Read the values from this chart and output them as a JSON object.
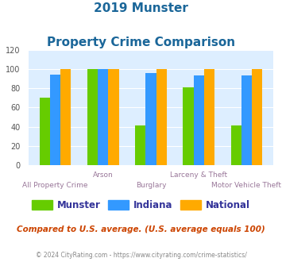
{
  "title_line1": "2019 Munster",
  "title_line2": "Property Crime Comparison",
  "categories": [
    "All Property Crime",
    "Arson",
    "Burglary",
    "Larceny & Theft",
    "Motor Vehicle Theft"
  ],
  "munster": [
    70,
    100,
    41,
    81,
    41
  ],
  "indiana": [
    94,
    100,
    96,
    93,
    93
  ],
  "national": [
    100,
    100,
    100,
    100,
    100
  ],
  "color_munster": "#66cc00",
  "color_indiana": "#3399ff",
  "color_national": "#ffaa00",
  "ylim": [
    0,
    120
  ],
  "yticks": [
    0,
    20,
    40,
    60,
    80,
    100,
    120
  ],
  "title_color": "#1a6699",
  "axis_label_color": "#997799",
  "legend_label_color": "#333399",
  "note_text": "Compared to U.S. average. (U.S. average equals 100)",
  "note_color": "#cc4400",
  "footer_text": "© 2024 CityRating.com - https://www.cityrating.com/crime-statistics/",
  "footer_color": "#888888",
  "bg_color": "#ddeeff",
  "fig_bg": "#ffffff",
  "row1_labels": [
    "",
    "Arson",
    "",
    "Larceny & Theft",
    ""
  ],
  "row2_labels": [
    "All Property Crime",
    "",
    "Burglary",
    "",
    "Motor Vehicle Theft"
  ]
}
